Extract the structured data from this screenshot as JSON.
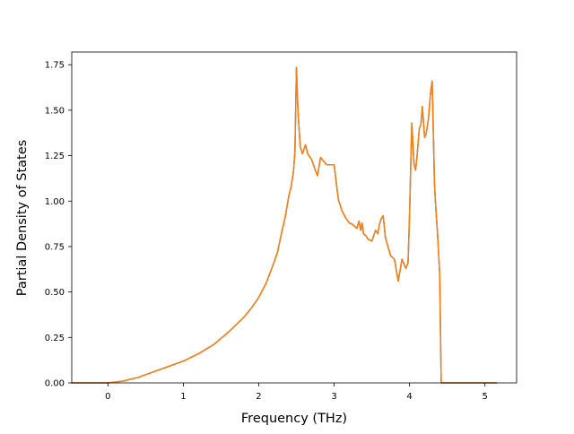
{
  "chart_data": {
    "type": "line",
    "title": "",
    "xlabel": "Frequency (THz)",
    "ylabel": "Partial Density of States",
    "xlim": [
      -0.48,
      5.42
    ],
    "ylim": [
      0.0,
      1.82
    ],
    "xticks": [
      0,
      1,
      2,
      3,
      4,
      5
    ],
    "yticks": [
      0.0,
      0.25,
      0.5,
      0.75,
      1.0,
      1.25,
      1.5,
      1.75
    ],
    "xtick_labels": [
      "0",
      "1",
      "2",
      "3",
      "4",
      "5"
    ],
    "ytick_labels": [
      "0.00",
      "0.25",
      "0.50",
      "0.75",
      "1.00",
      "1.25",
      "1.50",
      "1.75"
    ],
    "grid": false,
    "legend": "none",
    "colors": {
      "series_0": "#1f77b4",
      "series_1": "#ff7f0e",
      "overlap_effect": "#e8822a"
    },
    "series": [
      {
        "x": [
          -0.48,
          0.0,
          0.2,
          0.4,
          0.6,
          0.8,
          1.0,
          1.2,
          1.4,
          1.5,
          1.6,
          1.8,
          1.9,
          2.0,
          2.1,
          2.2,
          2.25,
          2.3,
          2.35,
          2.4,
          2.43,
          2.46,
          2.48,
          2.5,
          2.52,
          2.55,
          2.58,
          2.62,
          2.65,
          2.7,
          2.75,
          2.78,
          2.82,
          2.86,
          2.9,
          2.95,
          3.0,
          3.04,
          3.06,
          3.08,
          3.1,
          3.15,
          3.2,
          3.25,
          3.3,
          3.33,
          3.35,
          3.37,
          3.39,
          3.42,
          3.45,
          3.5,
          3.55,
          3.58,
          3.6,
          3.62,
          3.65,
          3.68,
          3.72,
          3.75,
          3.8,
          3.85,
          3.9,
          3.95,
          3.98,
          4.0,
          4.03,
          4.06,
          4.08,
          4.1,
          4.13,
          4.15,
          4.17,
          4.2,
          4.22,
          4.25,
          4.28,
          4.3,
          4.32,
          4.33,
          4.35,
          4.37,
          4.4,
          4.42,
          4.44,
          4.46,
          4.48,
          4.5,
          4.55,
          4.6,
          4.63,
          4.66,
          4.68,
          4.7,
          4.9,
          5.15
        ],
        "y": [
          0.0,
          0.0,
          0.01,
          0.03,
          0.06,
          0.09,
          0.12,
          0.16,
          0.21,
          0.245,
          0.28,
          0.36,
          0.41,
          0.47,
          0.55,
          0.66,
          0.72,
          0.82,
          0.91,
          1.03,
          1.08,
          1.16,
          1.27,
          1.735,
          1.5,
          1.3,
          1.26,
          1.31,
          1.26,
          1.23,
          1.17,
          1.14,
          1.24,
          1.22,
          1.2,
          1.2,
          1.2,
          1.06,
          1.0,
          0.98,
          0.95,
          0.91,
          0.88,
          0.87,
          0.85,
          0.89,
          0.84,
          0.88,
          0.82,
          0.81,
          0.79,
          0.78,
          0.84,
          0.82,
          0.87,
          0.9,
          0.92,
          0.8,
          0.74,
          0.7,
          0.68,
          0.56,
          0.68,
          0.63,
          0.66,
          0.92,
          1.43,
          1.2,
          1.17,
          1.25,
          1.4,
          1.42,
          1.52,
          1.35,
          1.37,
          1.45,
          1.6,
          1.66,
          1.3,
          1.1,
          0.95,
          0.83,
          0.6,
          0.0,
          0.0,
          0.0,
          0.0,
          0.0,
          0.0,
          0.0,
          0.0,
          0.0,
          0.0,
          0.0,
          0.0,
          0.0
        ]
      },
      {
        "x": [
          -0.48,
          0.0,
          0.2,
          0.4,
          0.6,
          0.8,
          1.0,
          1.2,
          1.4,
          1.5,
          1.6,
          1.8,
          1.9,
          2.0,
          2.1,
          2.2,
          2.25,
          2.3,
          2.35,
          2.4,
          2.43,
          2.46,
          2.48,
          2.5,
          2.52,
          2.55,
          2.58,
          2.62,
          2.65,
          2.7,
          2.75,
          2.78,
          2.82,
          2.86,
          2.9,
          2.95,
          3.0,
          3.04,
          3.06,
          3.08,
          3.1,
          3.15,
          3.2,
          3.25,
          3.3,
          3.33,
          3.35,
          3.37,
          3.39,
          3.42,
          3.45,
          3.5,
          3.55,
          3.58,
          3.6,
          3.62,
          3.65,
          3.68,
          3.72,
          3.75,
          3.8,
          3.85,
          3.9,
          3.95,
          3.98,
          4.0,
          4.03,
          4.06,
          4.08,
          4.1,
          4.13,
          4.15,
          4.17,
          4.2,
          4.22,
          4.25,
          4.28,
          4.3,
          4.32,
          4.33,
          4.35,
          4.37,
          4.4,
          4.42,
          4.44,
          4.46,
          4.48,
          4.5,
          4.55,
          4.6,
          4.63,
          4.66,
          4.68,
          4.7,
          4.9,
          5.15
        ],
        "y": [
          0.0,
          0.0,
          0.01,
          0.03,
          0.06,
          0.09,
          0.12,
          0.16,
          0.21,
          0.245,
          0.28,
          0.36,
          0.41,
          0.47,
          0.55,
          0.66,
          0.72,
          0.82,
          0.91,
          1.03,
          1.08,
          1.16,
          1.27,
          1.735,
          1.5,
          1.3,
          1.26,
          1.31,
          1.26,
          1.23,
          1.17,
          1.14,
          1.24,
          1.22,
          1.2,
          1.2,
          1.2,
          1.06,
          1.0,
          0.98,
          0.95,
          0.91,
          0.88,
          0.87,
          0.85,
          0.89,
          0.84,
          0.88,
          0.82,
          0.81,
          0.79,
          0.78,
          0.84,
          0.82,
          0.87,
          0.9,
          0.92,
          0.8,
          0.74,
          0.7,
          0.68,
          0.56,
          0.68,
          0.63,
          0.66,
          0.92,
          1.43,
          1.2,
          1.17,
          1.25,
          1.4,
          1.42,
          1.52,
          1.35,
          1.37,
          1.45,
          1.6,
          1.66,
          1.3,
          1.1,
          0.95,
          0.83,
          0.6,
          0.0,
          0.0,
          0.0,
          0.0,
          0.0,
          0.0,
          0.0,
          0.0,
          0.0,
          0.0,
          0.0,
          0.0,
          0.0
        ]
      }
    ]
  }
}
